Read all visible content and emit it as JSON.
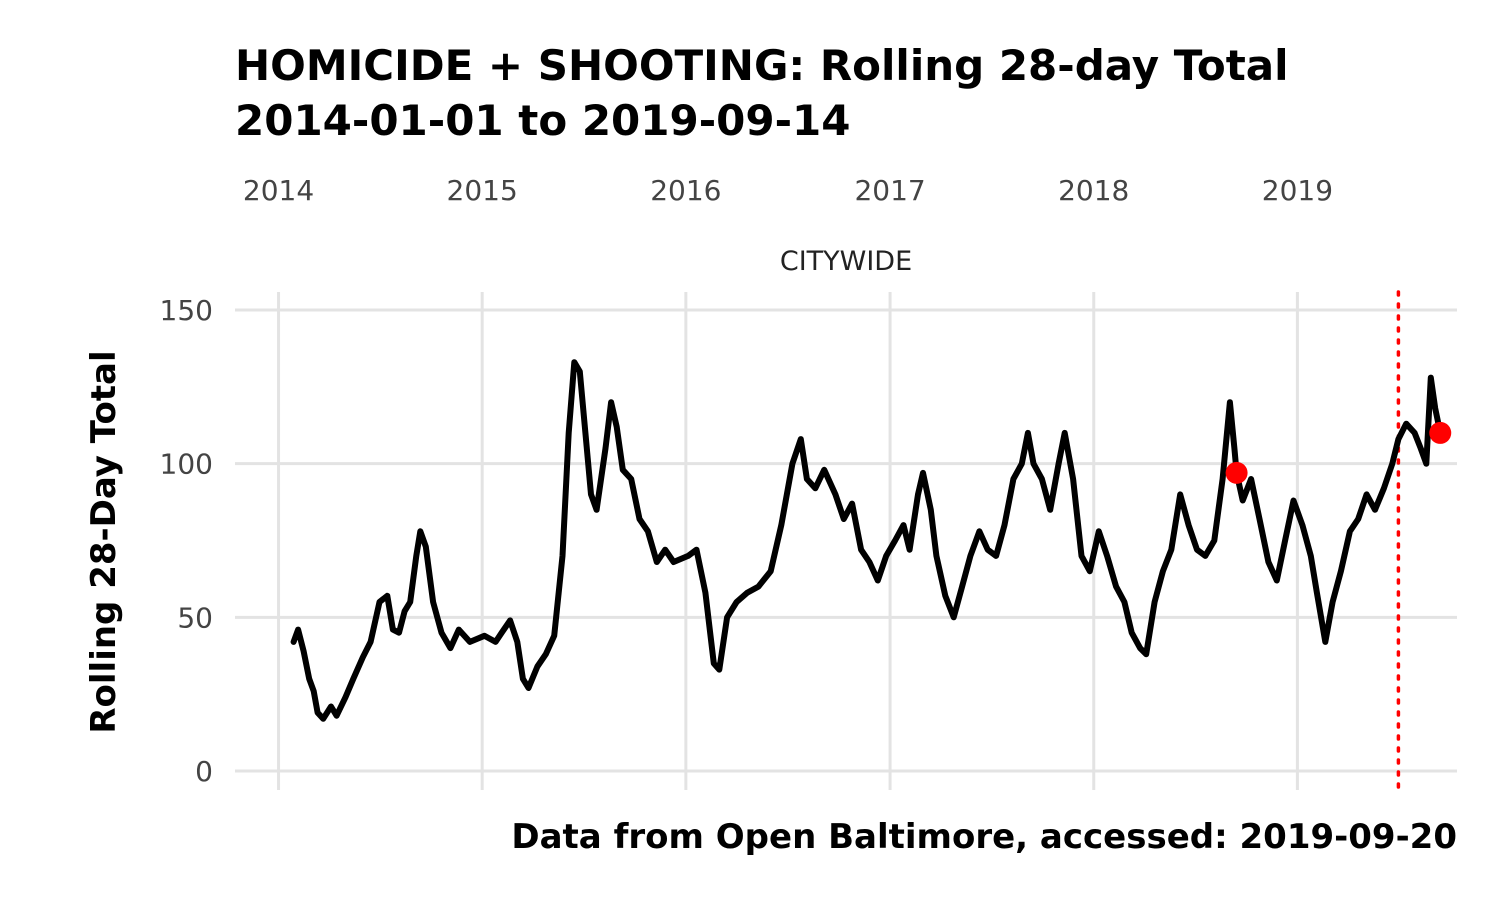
{
  "chart_data": {
    "type": "line",
    "title": "HOMICIDE + SHOOTING: Rolling 28-day Total",
    "subtitle": "2014-01-01 to 2019-09-14",
    "facet_label": "CITYWIDE",
    "xlabel": "",
    "ylabel": "Rolling 28-Day Total",
    "caption": "Data from Open Baltimore, accessed: 2019-09-20",
    "x_axis_position": "top",
    "x_ticks": [
      "2014",
      "2015",
      "2016",
      "2017",
      "2018",
      "2019"
    ],
    "y_ticks": [
      "0",
      "50",
      "100",
      "150"
    ],
    "xlim": [
      "2013-10-15",
      "2019-10-14"
    ],
    "ylim": [
      0,
      150
    ],
    "grid": true,
    "colors": {
      "line": "#000000",
      "highlight": "#ff0000",
      "grid": "#e3e3e3"
    },
    "vline": {
      "x": "2019-07-01",
      "style": "dotted",
      "color": "#ff0000"
    },
    "highlight_points": [
      {
        "x": "2018-09-14",
        "y": 97
      },
      {
        "x": "2019-09-14",
        "y": 110
      }
    ],
    "series": [
      {
        "points": [
          [
            "2014-01-28",
            42
          ],
          [
            "2014-02-05",
            46
          ],
          [
            "2014-02-15",
            39
          ],
          [
            "2014-02-25",
            30
          ],
          [
            "2014-03-05",
            26
          ],
          [
            "2014-03-12",
            19
          ],
          [
            "2014-03-22",
            17
          ],
          [
            "2014-04-05",
            21
          ],
          [
            "2014-04-15",
            18
          ],
          [
            "2014-05-01",
            24
          ],
          [
            "2014-05-15",
            30
          ],
          [
            "2014-06-01",
            37
          ],
          [
            "2014-06-15",
            42
          ],
          [
            "2014-07-01",
            55
          ],
          [
            "2014-07-15",
            57
          ],
          [
            "2014-07-25",
            46
          ],
          [
            "2014-08-05",
            45
          ],
          [
            "2014-08-15",
            52
          ],
          [
            "2014-08-25",
            55
          ],
          [
            "2014-09-05",
            70
          ],
          [
            "2014-09-12",
            78
          ],
          [
            "2014-09-22",
            73
          ],
          [
            "2014-10-05",
            55
          ],
          [
            "2014-10-20",
            45
          ],
          [
            "2014-11-05",
            40
          ],
          [
            "2014-11-20",
            46
          ],
          [
            "2014-12-10",
            42
          ],
          [
            "2015-01-05",
            44
          ],
          [
            "2015-01-25",
            42
          ],
          [
            "2015-02-05",
            45
          ],
          [
            "2015-02-20",
            49
          ],
          [
            "2015-03-05",
            42
          ],
          [
            "2015-03-15",
            30
          ],
          [
            "2015-03-25",
            27
          ],
          [
            "2015-04-10",
            34
          ],
          [
            "2015-04-25",
            38
          ],
          [
            "2015-05-10",
            44
          ],
          [
            "2015-05-25",
            70
          ],
          [
            "2015-06-05",
            110
          ],
          [
            "2015-06-15",
            133
          ],
          [
            "2015-06-25",
            130
          ],
          [
            "2015-07-05",
            110
          ],
          [
            "2015-07-15",
            90
          ],
          [
            "2015-07-25",
            85
          ],
          [
            "2015-08-10",
            105
          ],
          [
            "2015-08-20",
            120
          ],
          [
            "2015-08-30",
            112
          ],
          [
            "2015-09-10",
            98
          ],
          [
            "2015-09-25",
            95
          ],
          [
            "2015-10-10",
            82
          ],
          [
            "2015-10-25",
            78
          ],
          [
            "2015-11-10",
            68
          ],
          [
            "2015-11-25",
            72
          ],
          [
            "2015-12-10",
            68
          ],
          [
            "2016-01-05",
            70
          ],
          [
            "2016-01-20",
            72
          ],
          [
            "2016-02-05",
            58
          ],
          [
            "2016-02-20",
            35
          ],
          [
            "2016-03-01",
            33
          ],
          [
            "2016-03-15",
            50
          ],
          [
            "2016-04-01",
            55
          ],
          [
            "2016-04-20",
            58
          ],
          [
            "2016-05-10",
            60
          ],
          [
            "2016-06-01",
            65
          ],
          [
            "2016-06-20",
            80
          ],
          [
            "2016-07-10",
            100
          ],
          [
            "2016-07-25",
            108
          ],
          [
            "2016-08-05",
            95
          ],
          [
            "2016-08-20",
            92
          ],
          [
            "2016-09-05",
            98
          ],
          [
            "2016-09-25",
            90
          ],
          [
            "2016-10-10",
            82
          ],
          [
            "2016-10-25",
            87
          ],
          [
            "2016-11-10",
            72
          ],
          [
            "2016-11-25",
            68
          ],
          [
            "2016-12-10",
            62
          ],
          [
            "2016-12-25",
            70
          ],
          [
            "2017-01-10",
            75
          ],
          [
            "2017-01-25",
            80
          ],
          [
            "2017-02-05",
            72
          ],
          [
            "2017-02-20",
            90
          ],
          [
            "2017-03-01",
            97
          ],
          [
            "2017-03-15",
            85
          ],
          [
            "2017-03-25",
            70
          ],
          [
            "2017-04-10",
            57
          ],
          [
            "2017-04-25",
            50
          ],
          [
            "2017-05-10",
            60
          ],
          [
            "2017-05-25",
            70
          ],
          [
            "2017-06-10",
            78
          ],
          [
            "2017-06-25",
            72
          ],
          [
            "2017-07-10",
            70
          ],
          [
            "2017-07-25",
            80
          ],
          [
            "2017-08-10",
            95
          ],
          [
            "2017-08-25",
            100
          ],
          [
            "2017-09-05",
            110
          ],
          [
            "2017-09-15",
            100
          ],
          [
            "2017-09-30",
            95
          ],
          [
            "2017-10-15",
            85
          ],
          [
            "2017-10-30",
            100
          ],
          [
            "2017-11-10",
            110
          ],
          [
            "2017-11-25",
            95
          ],
          [
            "2017-12-10",
            70
          ],
          [
            "2017-12-25",
            65
          ],
          [
            "2018-01-10",
            78
          ],
          [
            "2018-01-25",
            70
          ],
          [
            "2018-02-10",
            60
          ],
          [
            "2018-02-25",
            55
          ],
          [
            "2018-03-10",
            45
          ],
          [
            "2018-03-25",
            40
          ],
          [
            "2018-04-05",
            38
          ],
          [
            "2018-04-20",
            55
          ],
          [
            "2018-05-05",
            65
          ],
          [
            "2018-05-20",
            72
          ],
          [
            "2018-06-05",
            90
          ],
          [
            "2018-06-20",
            80
          ],
          [
            "2018-07-05",
            72
          ],
          [
            "2018-07-20",
            70
          ],
          [
            "2018-08-05",
            75
          ],
          [
            "2018-08-20",
            95
          ],
          [
            "2018-09-02",
            120
          ],
          [
            "2018-09-10",
            105
          ],
          [
            "2018-09-14",
            97
          ],
          [
            "2018-09-25",
            88
          ],
          [
            "2018-10-10",
            95
          ],
          [
            "2018-10-25",
            82
          ],
          [
            "2018-11-10",
            68
          ],
          [
            "2018-11-25",
            62
          ],
          [
            "2018-12-10",
            75
          ],
          [
            "2018-12-25",
            88
          ],
          [
            "2019-01-10",
            80
          ],
          [
            "2019-01-25",
            70
          ],
          [
            "2019-02-05",
            58
          ],
          [
            "2019-02-20",
            42
          ],
          [
            "2019-03-05",
            55
          ],
          [
            "2019-03-20",
            65
          ],
          [
            "2019-04-05",
            78
          ],
          [
            "2019-04-20",
            82
          ],
          [
            "2019-05-05",
            90
          ],
          [
            "2019-05-20",
            85
          ],
          [
            "2019-06-05",
            92
          ],
          [
            "2019-06-20",
            100
          ],
          [
            "2019-07-01",
            108
          ],
          [
            "2019-07-15",
            113
          ],
          [
            "2019-07-30",
            110
          ],
          [
            "2019-08-10",
            105
          ],
          [
            "2019-08-20",
            100
          ],
          [
            "2019-08-28",
            128
          ],
          [
            "2019-09-05",
            118
          ],
          [
            "2019-09-14",
            110
          ]
        ]
      }
    ]
  }
}
